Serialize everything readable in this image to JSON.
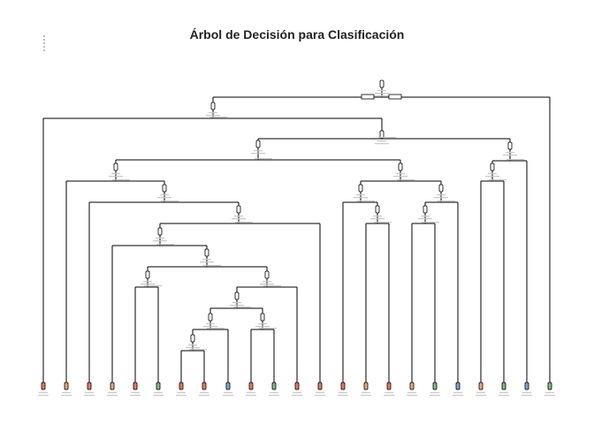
{
  "title": "Árbol de Decisión para Clasificación",
  "colors": {
    "class_red": "#e8795f",
    "class_orange": "#f3a574",
    "class_blue": "#7aa9d6",
    "class_green": "#7fbf7a",
    "node_fill": "#ffffff",
    "edge": "#000000"
  },
  "leaf_classes": [
    "red",
    "orange",
    "red",
    "orange",
    "red",
    "green",
    "red",
    "red",
    "blue",
    "red",
    "green",
    "red",
    "red",
    "red",
    "orange",
    "red",
    "orange",
    "green",
    "blue",
    "orange",
    "green",
    "blue",
    "green"
  ]
}
